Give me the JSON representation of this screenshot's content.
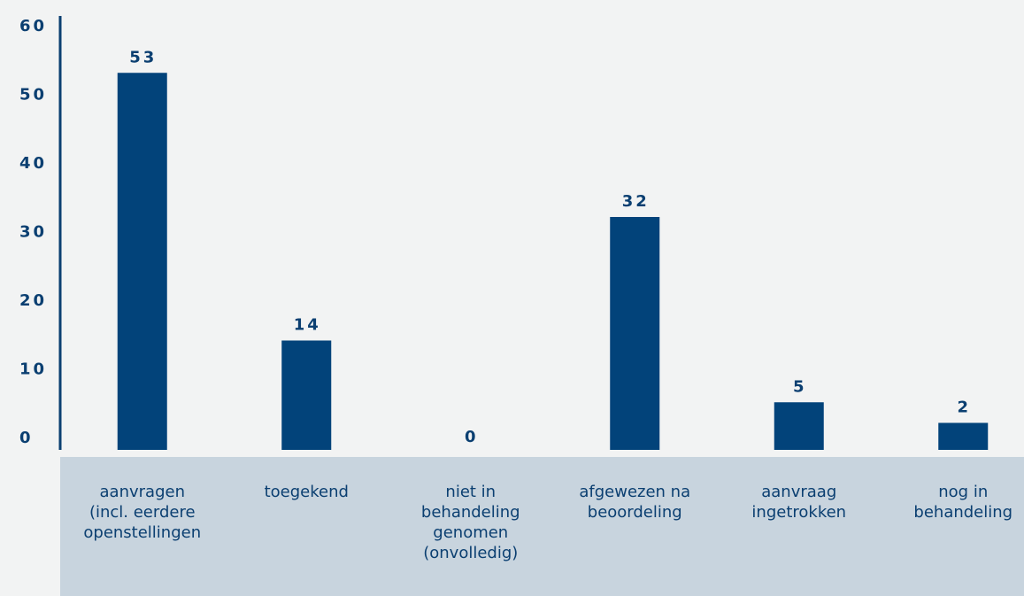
{
  "chart_data": {
    "type": "bar",
    "categories": [
      [
        "aanvragen",
        "(incl. eerdere",
        "openstellingen"
      ],
      [
        "toegekend"
      ],
      [
        "niet in",
        "behandeling",
        "genomen",
        "(onvolledig)"
      ],
      [
        "afgewezen na",
        "beoordeling"
      ],
      [
        "aanvraag",
        "ingetrokken"
      ],
      [
        "nog in",
        "behandeling"
      ]
    ],
    "values": [
      53,
      14,
      0,
      32,
      5,
      2
    ],
    "data_labels": [
      "53",
      "14",
      "0",
      "32",
      "5",
      "2"
    ],
    "yticks": [
      0,
      10,
      20,
      30,
      40,
      50,
      60
    ],
    "ytick_labels": [
      "0",
      "10",
      "20",
      "30",
      "40",
      "50",
      "60"
    ],
    "ylim": [
      0,
      60
    ],
    "title": "",
    "xlabel": "",
    "ylabel": "",
    "grid": false,
    "legend": "none",
    "colors": {
      "bar": "#02437a",
      "text": "#0b3f71",
      "axis": "#0b3f71",
      "category_band": "#c8d4de",
      "background": "#f2f3f3"
    }
  }
}
